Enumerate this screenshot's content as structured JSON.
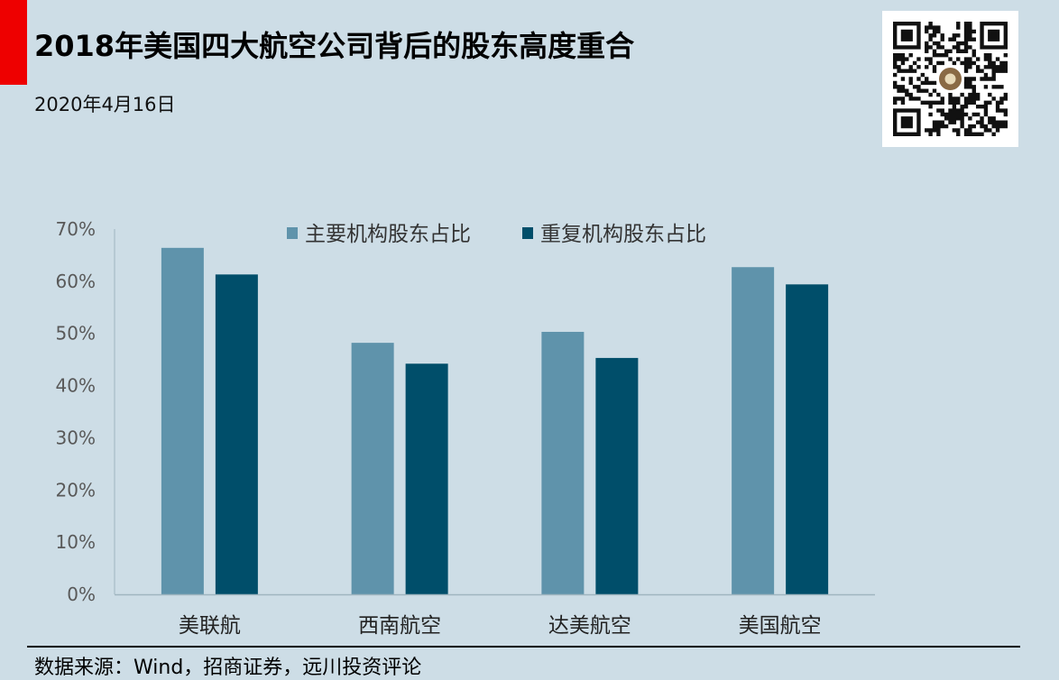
{
  "header": {
    "title": "2018年美国四大航空公司背后的股东高度重合",
    "date": "2020年4月16日"
  },
  "footer": {
    "source": "数据来源：Wind，招商证券，远川投资评论"
  },
  "colors": {
    "background": "#cddde6",
    "accent": "#ee0000",
    "series_1": "#5f93ab",
    "series_2": "#004e6a"
  },
  "chart_data": {
    "type": "bar",
    "title": "",
    "xlabel": "",
    "ylabel": "",
    "categories": [
      "美联航",
      "西南航空",
      "达美航空",
      "美国航空"
    ],
    "series": [
      {
        "name": "主要机构股东占比",
        "values": [
          66.4,
          48.2,
          50.3,
          62.7
        ],
        "color": "#5f93ab"
      },
      {
        "name": "重复机构股东占比",
        "values": [
          61.3,
          44.2,
          45.3,
          59.4
        ],
        "color": "#004e6a"
      }
    ],
    "ylim": [
      0,
      70
    ],
    "yticks": [
      "0%",
      "10%",
      "20%",
      "30%",
      "40%",
      "50%",
      "60%",
      "70%"
    ],
    "grid": false,
    "legend_position": "top"
  }
}
